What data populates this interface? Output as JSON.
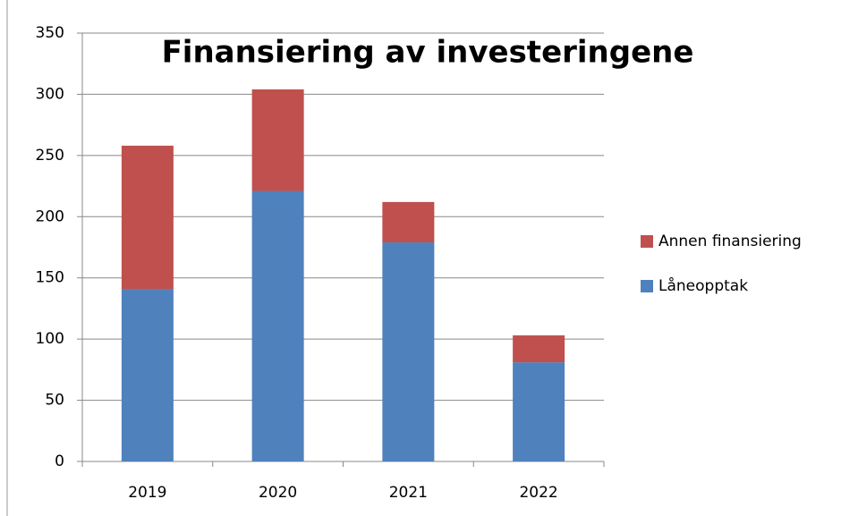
{
  "chart_data": {
    "type": "stacked_bar",
    "title": "Finansiering av investeringene",
    "categories": [
      "2019",
      "2020",
      "2021",
      "2022"
    ],
    "series": [
      {
        "name": "Låneopptak",
        "color": "#4f81bd",
        "values": [
          141,
          221,
          179,
          81
        ]
      },
      {
        "name": "Annen finansiering",
        "color": "#c0504d",
        "values": [
          117,
          83,
          33,
          22
        ]
      }
    ],
    "ylim": [
      0,
      350
    ],
    "yticks": [
      0,
      50,
      100,
      150,
      200,
      250,
      300,
      350
    ],
    "grid": true,
    "legend": "right"
  }
}
